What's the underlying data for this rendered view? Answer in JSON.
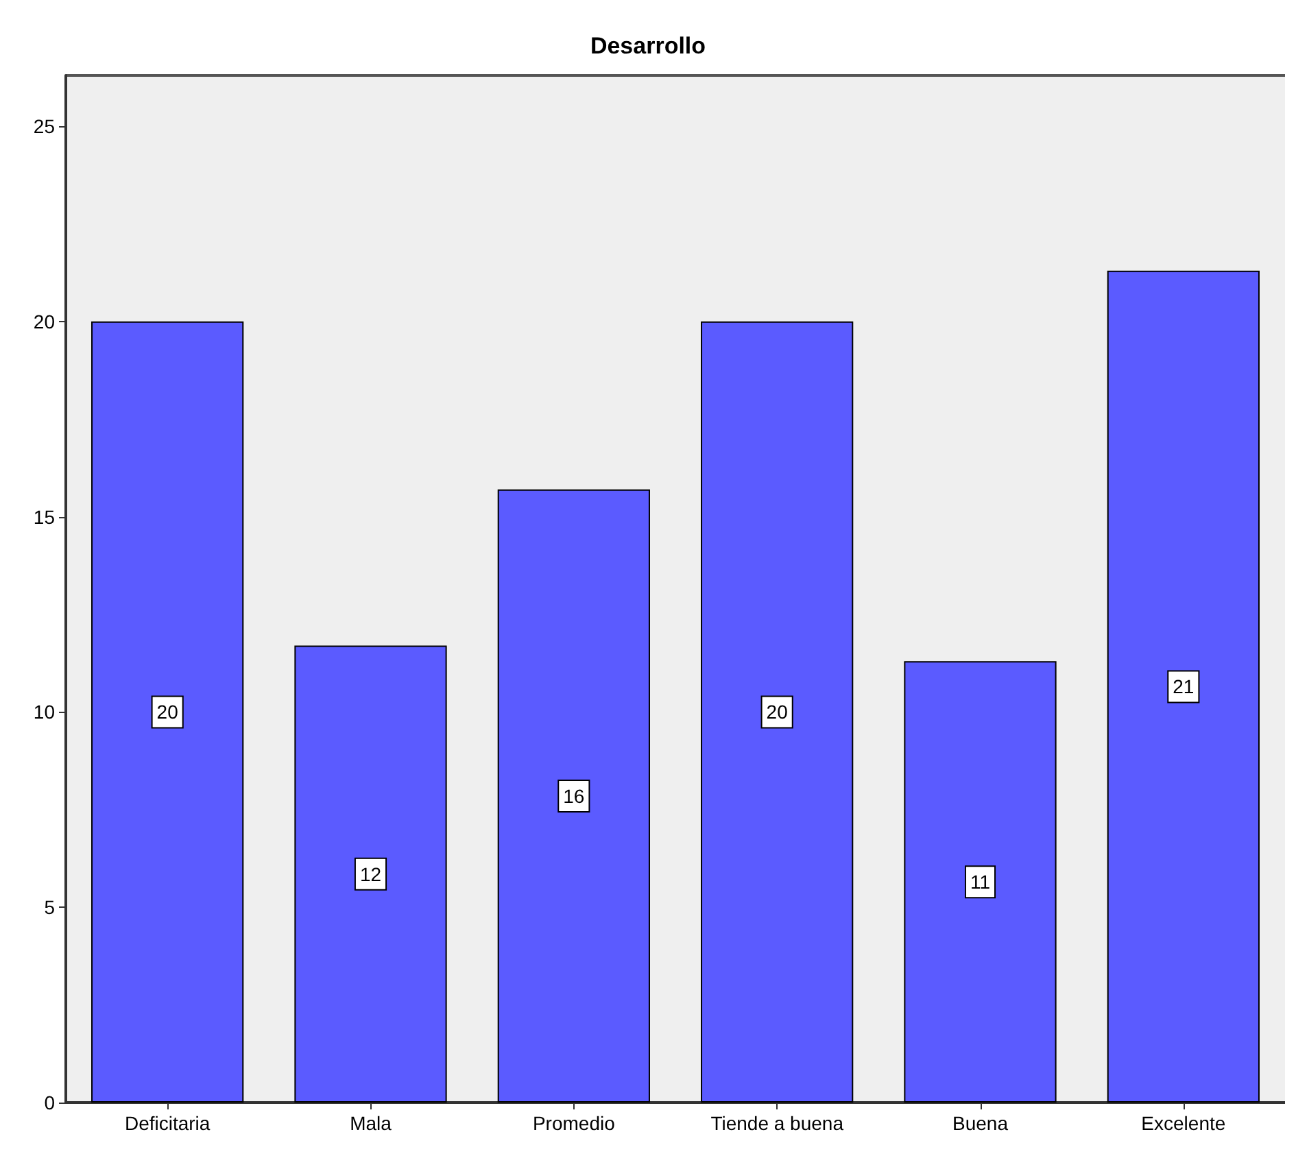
{
  "chart_data": {
    "type": "bar",
    "title": "Desarrollo",
    "categories": [
      "Deficitaria",
      "Mala",
      "Promedio",
      "Tiende a buena",
      "Buena",
      "Excelente"
    ],
    "values": [
      20,
      11.7,
      15.7,
      20,
      11.3,
      21.3
    ],
    "value_labels": [
      "20",
      "12",
      "16",
      "20",
      "11",
      "21"
    ],
    "color": "#5b5bff",
    "ylim": [
      0,
      26.3
    ],
    "yticks": [
      0,
      5,
      10,
      15,
      20,
      25
    ],
    "grid": false
  }
}
